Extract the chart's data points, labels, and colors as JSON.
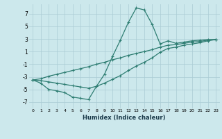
{
  "xlabel": "Humidex (Indice chaleur)",
  "background_color": "#cce8ec",
  "grid_color": "#aaccd4",
  "line_color": "#2e7d72",
  "x": [
    0,
    1,
    2,
    3,
    4,
    5,
    6,
    7,
    8,
    9,
    10,
    11,
    12,
    13,
    14,
    15,
    16,
    17,
    18,
    19,
    20,
    21,
    22,
    23
  ],
  "y_curve": [
    -3.5,
    -4.0,
    -5.0,
    -5.2,
    -5.5,
    -6.2,
    -6.4,
    -6.6,
    -4.5,
    -2.6,
    0.2,
    2.8,
    5.6,
    7.9,
    7.6,
    5.3,
    2.2,
    2.7,
    2.3,
    2.5,
    2.7,
    2.8,
    2.9,
    2.9
  ],
  "y_line_upper": [
    -3.5,
    -3.3,
    -2.9,
    -2.6,
    -2.3,
    -2.0,
    -1.7,
    -1.4,
    -1.0,
    -0.7,
    -0.3,
    0.0,
    0.4,
    0.7,
    1.0,
    1.3,
    1.7,
    2.0,
    2.1,
    2.3,
    2.5,
    2.6,
    2.8,
    2.9
  ],
  "y_line_lower": [
    -3.5,
    -3.6,
    -3.8,
    -4.0,
    -4.2,
    -4.4,
    -4.6,
    -4.8,
    -4.5,
    -4.0,
    -3.4,
    -2.8,
    -2.0,
    -1.3,
    -0.7,
    0.0,
    0.9,
    1.5,
    1.7,
    2.0,
    2.2,
    2.4,
    2.7,
    2.9
  ],
  "ylim": [
    -8,
    8.5
  ],
  "xlim": [
    -0.5,
    23.5
  ],
  "yticks": [
    -7,
    -5,
    -3,
    -1,
    1,
    3,
    5,
    7
  ],
  "xticks": [
    0,
    1,
    2,
    3,
    4,
    5,
    6,
    7,
    8,
    9,
    10,
    11,
    12,
    13,
    14,
    15,
    16,
    17,
    18,
    19,
    20,
    21,
    22,
    23
  ]
}
